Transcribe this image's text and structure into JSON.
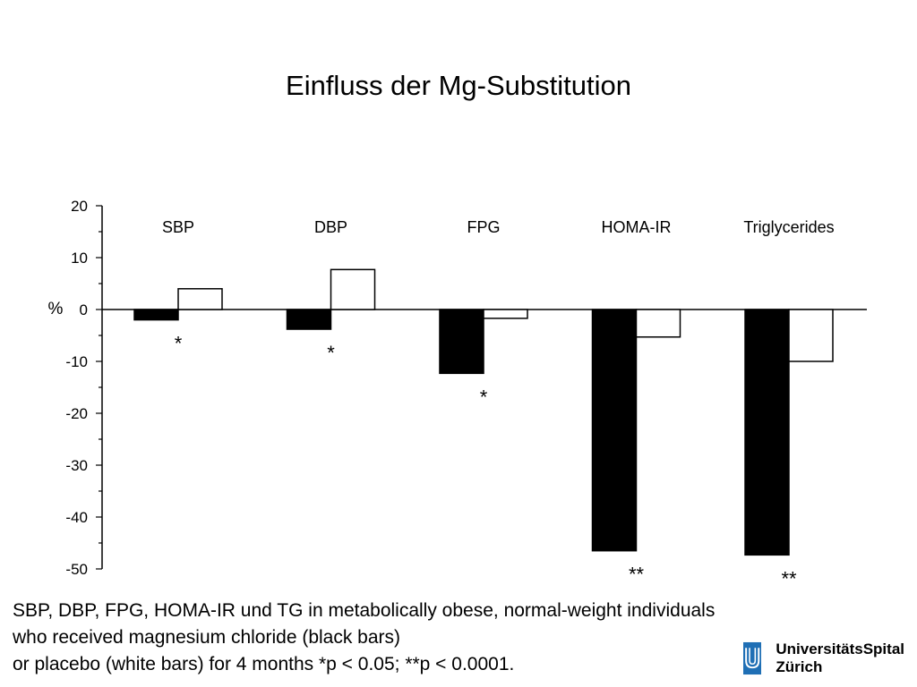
{
  "page": {
    "title": "Einfluss der Mg-Substitution",
    "caption_lines": [
      "SBP, DBP, FPG, HOMA-IR und TG in metabolically obese, normal-weight individuals",
      "who received magnesium chloride (black bars)",
      "or placebo (white bars) for 4 months *p < 0.05; **p < 0.0001."
    ],
    "logo": {
      "line1": "UniversitätsSpital",
      "line2": "Zürich",
      "color": "#1f6fb5"
    }
  },
  "chart_data": {
    "type": "bar",
    "ylabel": "%",
    "ylim": [
      -50,
      20
    ],
    "yticks": [
      20,
      10,
      0,
      -10,
      -20,
      -30,
      -40,
      -50
    ],
    "categories": [
      "SBP",
      "DBP",
      "FPG",
      "HOMA-IR",
      "Triglycerides"
    ],
    "series": [
      {
        "fill": "#000000",
        "values": [
          -2,
          -3.8,
          -12.3,
          -46.5,
          -47.3
        ]
      },
      {
        "fill": "#ffffff",
        "values": [
          4,
          7.7,
          -1.7,
          -5.3,
          -10
        ]
      }
    ],
    "significance": [
      "*",
      "*",
      "*",
      "**",
      "**"
    ]
  }
}
